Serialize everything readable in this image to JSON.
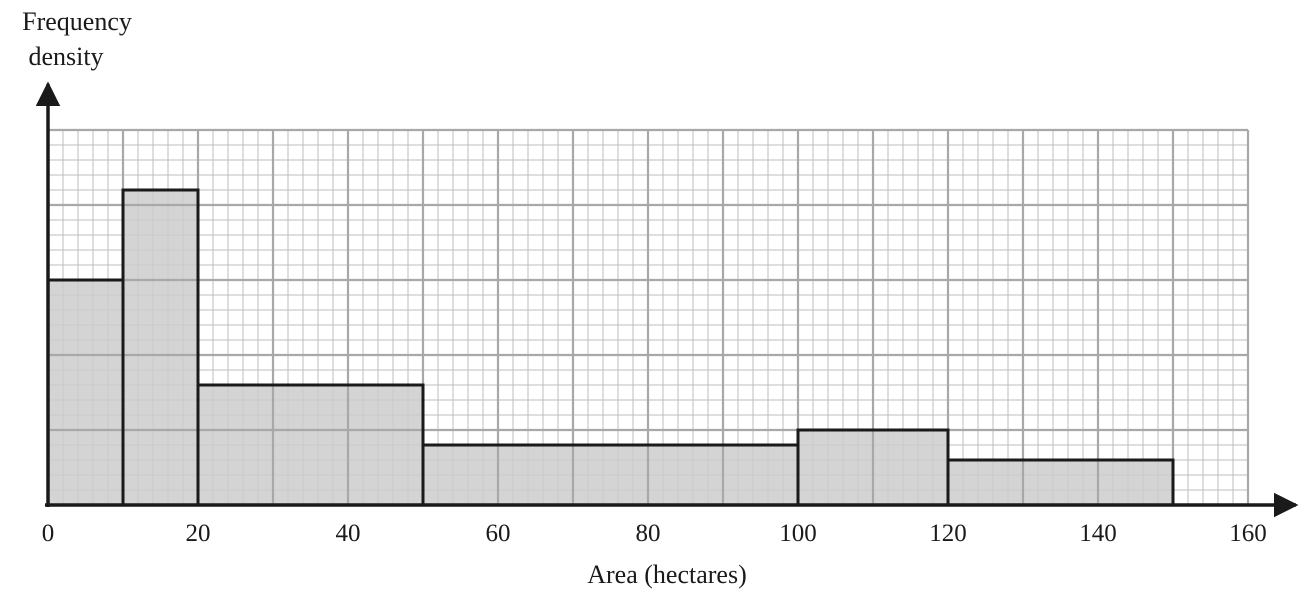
{
  "chart_data": {
    "type": "bar",
    "title": "",
    "xlabel": "Area (hectares)",
    "ylabel_lines": [
      "Frequency",
      "density"
    ],
    "x_ticks": [
      0,
      20,
      40,
      60,
      80,
      100,
      120,
      140,
      160
    ],
    "xlim": [
      0,
      160
    ],
    "ylim": [
      0,
      2.5
    ],
    "y_tick_labels_shown": false,
    "grid": true,
    "bins": [
      {
        "x_start": 0,
        "x_end": 10,
        "frequency_density": 1.5
      },
      {
        "x_start": 10,
        "x_end": 20,
        "frequency_density": 2.1
      },
      {
        "x_start": 20,
        "x_end": 50,
        "frequency_density": 0.8
      },
      {
        "x_start": 50,
        "x_end": 100,
        "frequency_density": 0.4
      },
      {
        "x_start": 100,
        "x_end": 120,
        "frequency_density": 0.5
      },
      {
        "x_start": 120,
        "x_end": 150,
        "frequency_density": 0.3
      }
    ],
    "colors": {
      "bar_fill": "#cccccc",
      "bar_stroke": "#1a1a1a",
      "grid_major": "#a8a8a8",
      "grid_minor": "#bdbdbd",
      "axis": "#1a1a1a"
    }
  }
}
